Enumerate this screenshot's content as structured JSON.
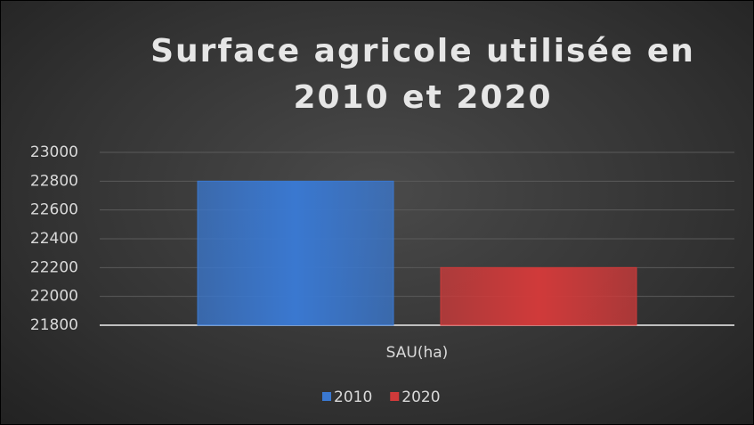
{
  "chart_data": {
    "type": "bar",
    "title": "Surface agricole utilisée en 2010 et 2020",
    "categories": [
      "SAU(ha)"
    ],
    "series": [
      {
        "name": "2010",
        "color": "#3a78d0",
        "values": [
          22800
        ]
      },
      {
        "name": "2020",
        "color": "#d03a3a",
        "values": [
          22200
        ]
      }
    ],
    "ylim": [
      21800,
      23000
    ],
    "yticks": [
      21800,
      22000,
      22200,
      22400,
      22600,
      22800,
      23000
    ],
    "grid": true,
    "legend": "bottom"
  }
}
